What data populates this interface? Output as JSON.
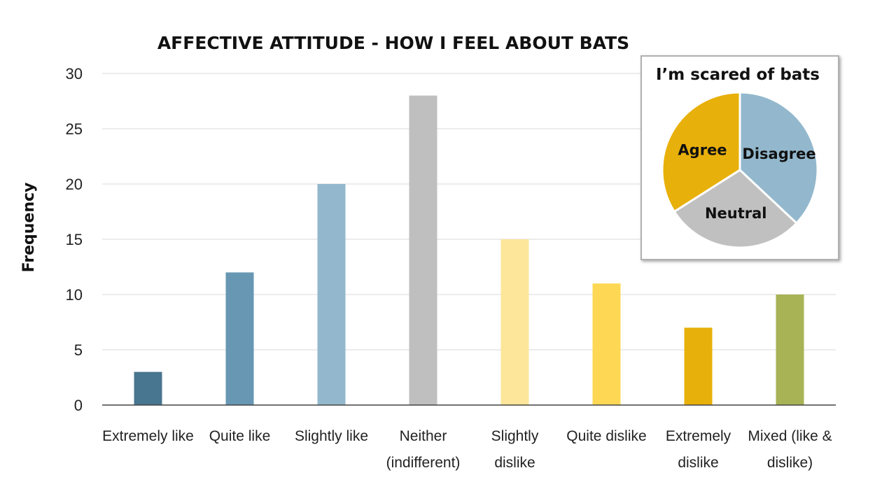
{
  "chart_data": [
    {
      "type": "bar",
      "title": "AFFECTIVE ATTITUDE - HOW I FEEL ABOUT BATS",
      "ylabel": "Frequency",
      "xlabel": "",
      "ylim": [
        0,
        30
      ],
      "yticks": [
        0,
        5,
        10,
        15,
        20,
        25,
        30
      ],
      "grid": true,
      "categories": [
        [
          "Extremely like"
        ],
        [
          "Quite like"
        ],
        [
          "Slightly like"
        ],
        [
          "Neither",
          "(indifferent)"
        ],
        [
          "Slightly",
          "dislike"
        ],
        [
          "Quite dislike"
        ],
        [
          "Extremely",
          "dislike"
        ],
        [
          "Mixed (like &",
          "dislike)"
        ]
      ],
      "values": [
        3,
        12,
        20,
        28,
        15,
        11,
        7,
        10
      ],
      "colors": [
        "#48758f",
        "#6797b3",
        "#93b8cd",
        "#bfbfbf",
        "#fde599",
        "#fed854",
        "#e8b00a",
        "#a8b355"
      ]
    },
    {
      "type": "pie",
      "title": "I’m scared of bats",
      "labels": [
        "Disagree",
        "Neutral",
        "Agree"
      ],
      "values": [
        37,
        29,
        34
      ],
      "colors": [
        "#93b8cd",
        "#c0c0c0",
        "#e8b00a"
      ]
    }
  ]
}
